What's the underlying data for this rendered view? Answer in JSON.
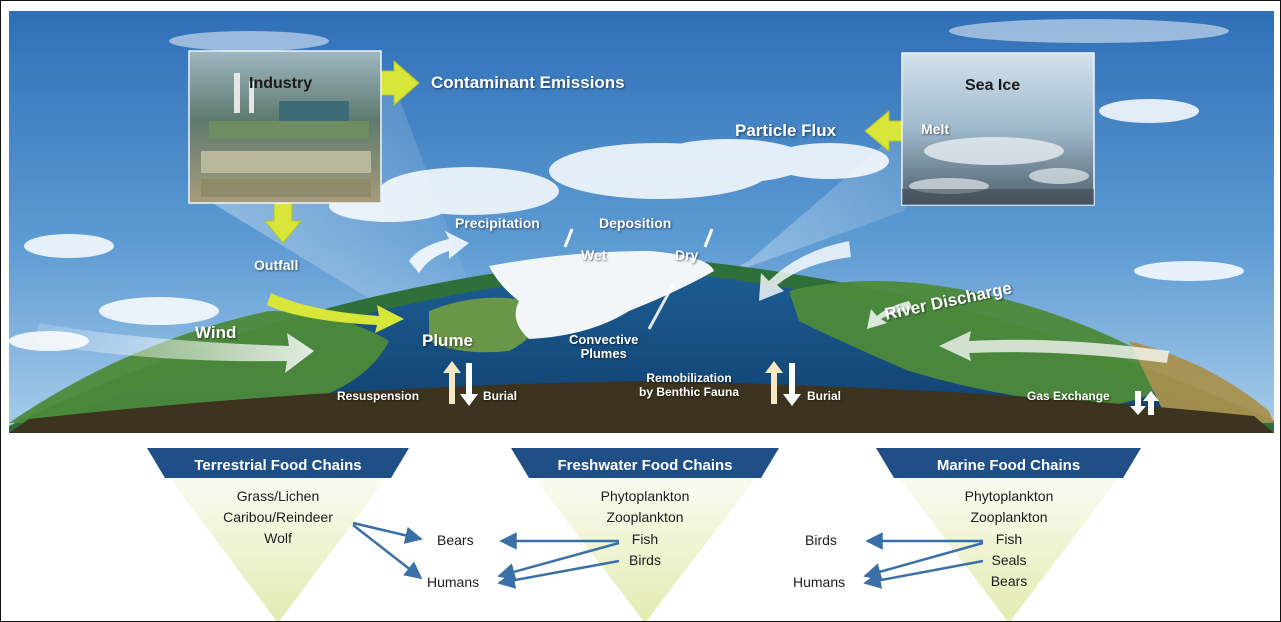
{
  "scene": {
    "industry_label": "Industry",
    "contaminant_emissions": "Contaminant Emissions",
    "sea_ice_label": "Sea Ice",
    "melt": "Melt",
    "particle_flux": "Particle Flux",
    "precipitation": "Precipitation",
    "deposition": "Deposition",
    "wet": "Wet",
    "dry": "Dry",
    "outfall": "Outfall",
    "wind": "Wind",
    "plume": "Plume",
    "convective_plumes": "Convective\nPlumes",
    "river_discharge": "River Discharge",
    "resuspension": "Resuspension",
    "burial_left": "Burial",
    "remobilization": "Remobilization\nby Benthic Fauna",
    "burial_right": "Burial",
    "gas_exchange": "Gas Exchange"
  },
  "food_chains": {
    "terrestrial": {
      "title": "Terrestrial Food Chains",
      "items": [
        "Grass/Lichen",
        "Caribou/Reindeer",
        "Wolf"
      ]
    },
    "freshwater": {
      "title": "Freshwater Food Chains",
      "items": [
        "Phytoplankton",
        "Zooplankton",
        "Fish",
        "Birds"
      ]
    },
    "marine": {
      "title": "Marine Food Chains",
      "items": [
        "Phytoplankton",
        "Zooplankton",
        "Fish",
        "Seals",
        "Bears"
      ]
    },
    "bears": "Bears",
    "humans_center": "Humans",
    "birds_right": "Birds",
    "humans_right": "Humans"
  },
  "colors": {
    "triangle_header": "#1f4f86",
    "triangle_fill": "#eef3c4",
    "link_arrow": "#3b6fa8",
    "yellow_arrow": "#d8e63a"
  }
}
